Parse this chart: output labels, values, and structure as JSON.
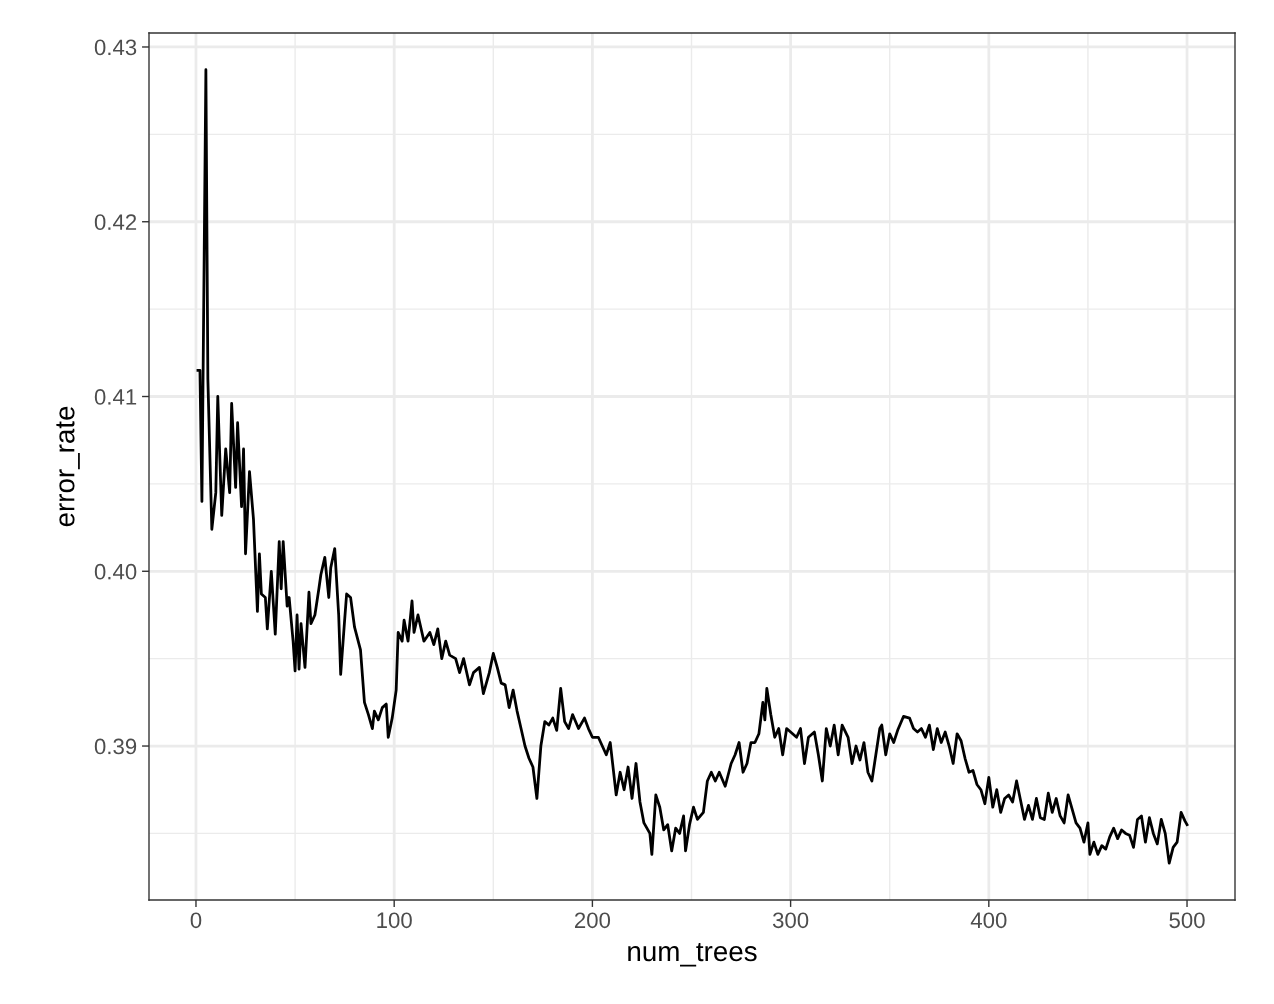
{
  "chart_data": {
    "type": "line",
    "xlabel": "num_trees",
    "ylabel": "error_rate",
    "xlim": [
      -23.7,
      524.2
    ],
    "ylim": [
      0.38119,
      0.4308
    ],
    "xticks": [
      0,
      100,
      200,
      300,
      400,
      500
    ],
    "yticks": [
      0.39,
      {
        "value": 0.4,
        "label": "0.40"
      },
      0.41,
      0.42,
      0.43
    ],
    "grid": true,
    "marker": "none",
    "line_style": "solid",
    "series": [
      {
        "color": "#000000",
        "x": [
          1,
          2,
          3,
          5,
          6,
          8,
          10,
          11,
          13,
          15,
          17,
          18,
          20,
          21,
          23,
          24,
          25,
          27,
          29,
          31,
          32,
          33,
          35,
          36,
          38,
          40,
          42,
          43,
          44,
          46,
          47,
          49,
          50,
          51,
          52,
          53,
          55,
          57,
          58,
          60,
          62,
          63,
          65,
          67,
          68,
          70,
          72,
          73,
          75,
          76,
          78,
          80,
          83,
          85,
          87,
          89,
          90,
          92,
          94,
          96,
          97,
          99,
          101,
          102,
          104,
          105,
          107,
          109,
          110,
          112,
          115,
          118,
          120,
          122,
          124,
          126,
          128,
          131,
          133,
          135,
          138,
          140,
          143,
          145,
          148,
          150,
          152,
          154,
          156,
          158,
          160,
          162,
          164,
          166,
          168,
          170,
          172,
          174,
          176,
          178,
          180,
          182,
          184,
          186,
          188,
          190,
          193,
          196,
          198,
          200,
          203,
          205,
          207,
          209,
          212,
          214,
          216,
          218,
          220,
          222,
          224,
          226,
          229,
          230,
          232,
          234,
          236,
          238,
          240,
          242,
          244,
          246,
          247,
          249,
          251,
          253,
          256,
          258,
          260,
          262,
          264,
          267,
          270,
          272,
          274,
          276,
          278,
          280,
          282,
          284,
          286,
          287,
          288,
          290,
          292,
          294,
          296,
          298,
          300,
          303,
          305,
          307,
          309,
          312,
          314,
          316,
          318,
          320,
          322,
          324,
          326,
          329,
          331,
          333,
          335,
          337,
          339,
          341,
          343,
          345,
          346,
          348,
          350,
          352,
          354,
          357,
          360,
          362,
          364,
          366,
          368,
          370,
          372,
          374,
          376,
          378,
          380,
          382,
          384,
          386,
          388,
          390,
          392,
          394,
          396,
          398,
          400,
          402,
          404,
          406,
          408,
          410,
          412,
          414,
          416,
          418,
          420,
          422,
          424,
          426,
          428,
          430,
          432,
          434,
          436,
          438,
          440,
          442,
          444,
          446,
          448,
          450,
          451,
          453,
          455,
          457,
          459,
          461,
          463,
          465,
          467,
          469,
          471,
          473,
          475,
          477,
          479,
          481,
          483,
          485,
          487,
          489,
          491,
          493,
          495,
          497,
          499,
          500
        ],
        "values": [
          0.4115,
          0.4115,
          0.404,
          0.4287,
          0.411,
          0.4024,
          0.4045,
          0.41,
          0.4032,
          0.407,
          0.4045,
          0.4096,
          0.4048,
          0.4085,
          0.4037,
          0.407,
          0.401,
          0.4057,
          0.403,
          0.3977,
          0.401,
          0.3987,
          0.3985,
          0.3967,
          0.4,
          0.3964,
          0.4017,
          0.399,
          0.4017,
          0.398,
          0.3985,
          0.396,
          0.3943,
          0.3975,
          0.3944,
          0.397,
          0.3945,
          0.3988,
          0.397,
          0.3975,
          0.399,
          0.3998,
          0.4008,
          0.3985,
          0.4002,
          0.4013,
          0.3975,
          0.3941,
          0.3972,
          0.3987,
          0.3985,
          0.3968,
          0.3955,
          0.3925,
          0.3918,
          0.391,
          0.392,
          0.3915,
          0.3922,
          0.3924,
          0.3905,
          0.3916,
          0.3932,
          0.3965,
          0.396,
          0.3972,
          0.396,
          0.3983,
          0.3965,
          0.3975,
          0.396,
          0.3965,
          0.3958,
          0.3967,
          0.395,
          0.396,
          0.3952,
          0.395,
          0.3942,
          0.395,
          0.3935,
          0.3942,
          0.3945,
          0.393,
          0.3942,
          0.3953,
          0.3945,
          0.3936,
          0.3935,
          0.3922,
          0.3932,
          0.392,
          0.391,
          0.39,
          0.3893,
          0.3888,
          0.387,
          0.39,
          0.3914,
          0.3912,
          0.3916,
          0.3909,
          0.3933,
          0.3914,
          0.391,
          0.3918,
          0.391,
          0.3916,
          0.391,
          0.3905,
          0.3905,
          0.39,
          0.3895,
          0.3902,
          0.3872,
          0.3885,
          0.3875,
          0.3888,
          0.387,
          0.389,
          0.3868,
          0.3856,
          0.385,
          0.3838,
          0.3872,
          0.3865,
          0.3852,
          0.3855,
          0.384,
          0.3853,
          0.385,
          0.386,
          0.384,
          0.3855,
          0.3865,
          0.3858,
          0.3862,
          0.388,
          0.3885,
          0.388,
          0.3885,
          0.3877,
          0.389,
          0.3895,
          0.3902,
          0.3885,
          0.389,
          0.3902,
          0.3902,
          0.3907,
          0.3925,
          0.3915,
          0.3933,
          0.3918,
          0.3905,
          0.391,
          0.3895,
          0.391,
          0.3908,
          0.3905,
          0.391,
          0.389,
          0.3905,
          0.3908,
          0.3895,
          0.388,
          0.391,
          0.39,
          0.3912,
          0.3895,
          0.3912,
          0.3905,
          0.389,
          0.39,
          0.3892,
          0.3902,
          0.3885,
          0.388,
          0.3895,
          0.391,
          0.3912,
          0.3895,
          0.3907,
          0.3902,
          0.3909,
          0.3917,
          0.3916,
          0.391,
          0.3908,
          0.391,
          0.3905,
          0.3912,
          0.3898,
          0.391,
          0.3902,
          0.3908,
          0.39,
          0.389,
          0.3907,
          0.3903,
          0.3893,
          0.3885,
          0.3886,
          0.3878,
          0.3875,
          0.3867,
          0.3882,
          0.3865,
          0.3875,
          0.3862,
          0.387,
          0.3872,
          0.3868,
          0.388,
          0.3869,
          0.3858,
          0.3866,
          0.3858,
          0.387,
          0.3859,
          0.3858,
          0.3873,
          0.3862,
          0.387,
          0.386,
          0.3856,
          0.3872,
          0.3864,
          0.3856,
          0.3853,
          0.3845,
          0.3856,
          0.3838,
          0.3845,
          0.3838,
          0.3843,
          0.3841,
          0.3848,
          0.3853,
          0.3847,
          0.3852,
          0.385,
          0.3849,
          0.3842,
          0.3858,
          0.386,
          0.3845,
          0.3859,
          0.385,
          0.3844,
          0.3858,
          0.385,
          0.3833,
          0.3842,
          0.3845,
          0.3862,
          0.3857,
          0.3855
        ]
      }
    ]
  }
}
